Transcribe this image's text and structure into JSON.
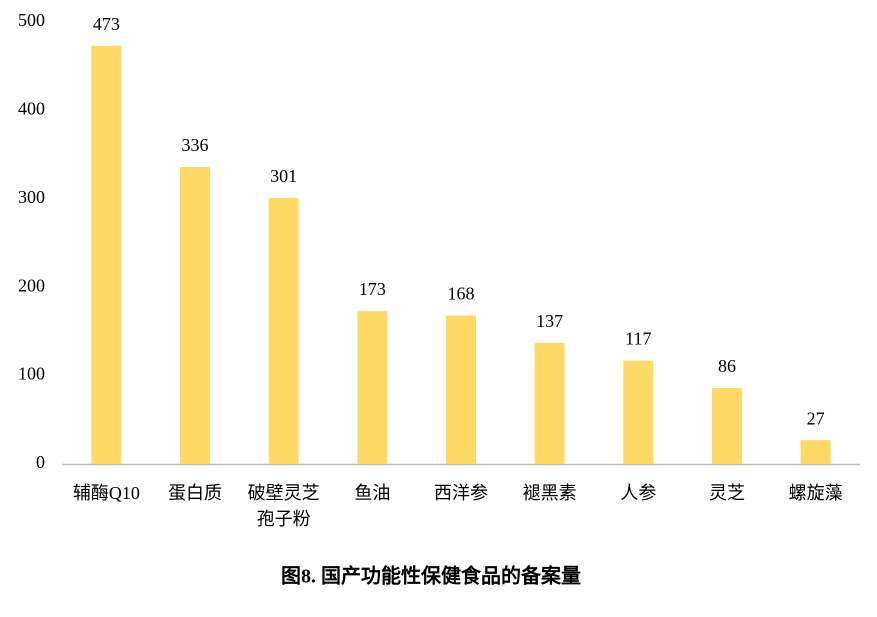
{
  "chart_data": {
    "type": "bar",
    "title": "图8. 国产功能性保健食品的备案量",
    "categories": [
      "辅酶Q10",
      "蛋白质",
      "破壁灵芝孢子粉",
      "鱼油",
      "西洋参",
      "褪黑素",
      "人参",
      "灵芝",
      "螺旋藻"
    ],
    "values": [
      473,
      336,
      301,
      173,
      168,
      137,
      117,
      86,
      27
    ],
    "color": "#ffd966",
    "ylim": [
      0,
      500
    ],
    "yticks": [
      0,
      100,
      200,
      300,
      400,
      500
    ],
    "grid": false
  }
}
